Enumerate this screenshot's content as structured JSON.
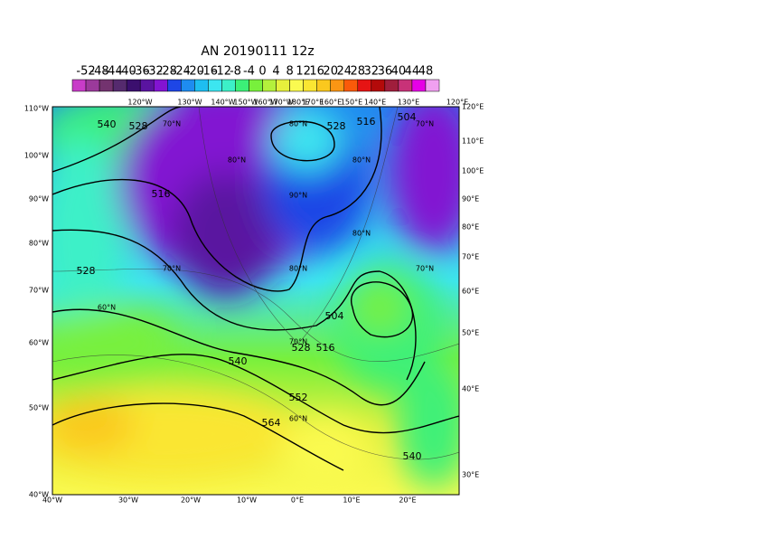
{
  "title": "AN  20190111 12z",
  "colorbar": {
    "labels": [
      "-52",
      "-48",
      "-44",
      "-40",
      "-36",
      "-32",
      "-28",
      "-24",
      "-20",
      "-16",
      "-12",
      "-8",
      "-4",
      "0",
      "4",
      "8",
      "12",
      "16",
      "20",
      "24",
      "28",
      "32",
      "36",
      "40",
      "44",
      "48"
    ],
    "colors": [
      "#c83cc8",
      "#9b3a9b",
      "#73336f",
      "#552a6e",
      "#3b0f6e",
      "#5a14a0",
      "#8214d2",
      "#1e46e6",
      "#1e8cf0",
      "#1ebef0",
      "#3ce6f0",
      "#3cf0c8",
      "#3cf078",
      "#78f03c",
      "#b4f03c",
      "#e6f03c",
      "#fafa50",
      "#fae632",
      "#fac81e",
      "#fa9614",
      "#fa5a0a",
      "#e61414",
      "#b40a0a",
      "#a01e3c",
      "#c83278",
      "#e600e6",
      "#f0a0f0"
    ]
  },
  "map": {
    "left_labels": [
      "110°W",
      "100°W",
      "90°W",
      "80°W",
      "70°W",
      "60°W",
      "50°W",
      "40°W"
    ],
    "bottom_labels": [
      "40°W",
      "30°W",
      "20°W",
      "10°W",
      "0°E",
      "10°E",
      "20°E"
    ],
    "top_labels": [
      "120°W",
      "130°W",
      "140°W",
      "150°W",
      "160°W",
      "170°W",
      "180°E",
      "170°E",
      "160°E",
      "150°E",
      "140°E",
      "130°E",
      "120°E"
    ],
    "right_labels": [
      "120°E",
      "110°E",
      "100°E",
      "90°E",
      "80°E",
      "70°E",
      "60°E",
      "50°E",
      "40°E",
      "30°E"
    ],
    "lat_labels": [
      "70°N",
      "80°N",
      "70°N",
      "80°N",
      "80°N",
      "90°N",
      "80°N",
      "70°N",
      "80°N",
      "70°N",
      "60°N",
      "70°N",
      "60°N"
    ],
    "contour_labels": [
      "540",
      "528",
      "516",
      "528",
      "528",
      "516",
      "504",
      "504",
      "516",
      "528",
      "540",
      "552",
      "564",
      "540"
    ]
  }
}
